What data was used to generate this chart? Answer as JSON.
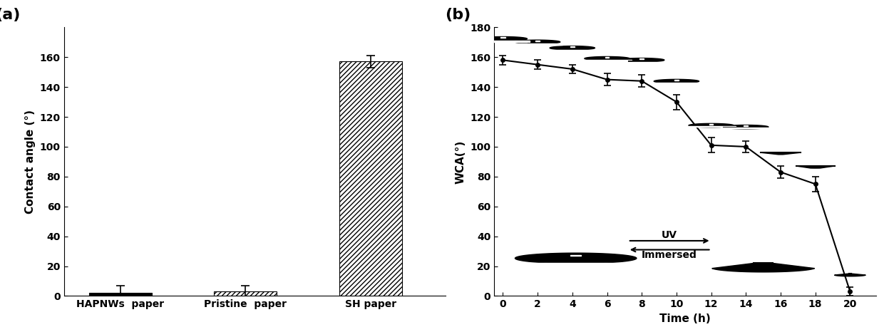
{
  "panel_a": {
    "categories": [
      "HAPNWs  paper",
      "Pristine  paper",
      "SH paper"
    ],
    "values": [
      2,
      3,
      157
    ],
    "errors": [
      5,
      4,
      4
    ],
    "ylabel": "Contact angle (°)",
    "ylim": [
      0,
      180
    ],
    "yticks": [
      0,
      20,
      40,
      60,
      80,
      100,
      120,
      140,
      160
    ],
    "label": "(a)"
  },
  "panel_b": {
    "time": [
      0,
      2,
      4,
      6,
      8,
      10,
      12,
      14,
      16,
      18,
      20
    ],
    "wca": [
      158,
      155,
      152,
      145,
      144,
      130,
      101,
      100,
      83,
      75,
      3
    ],
    "errors": [
      3,
      3,
      3,
      4,
      4,
      5,
      5,
      4,
      4,
      5,
      3
    ],
    "xlabel": "Time (h)",
    "ylabel": "WCA(°)",
    "ylim": [
      0,
      180
    ],
    "yticks": [
      0,
      20,
      40,
      60,
      80,
      100,
      120,
      140,
      160,
      180
    ],
    "xticks": [
      0,
      2,
      4,
      6,
      8,
      10,
      12,
      14,
      16,
      18,
      20
    ],
    "label": "(b)"
  }
}
